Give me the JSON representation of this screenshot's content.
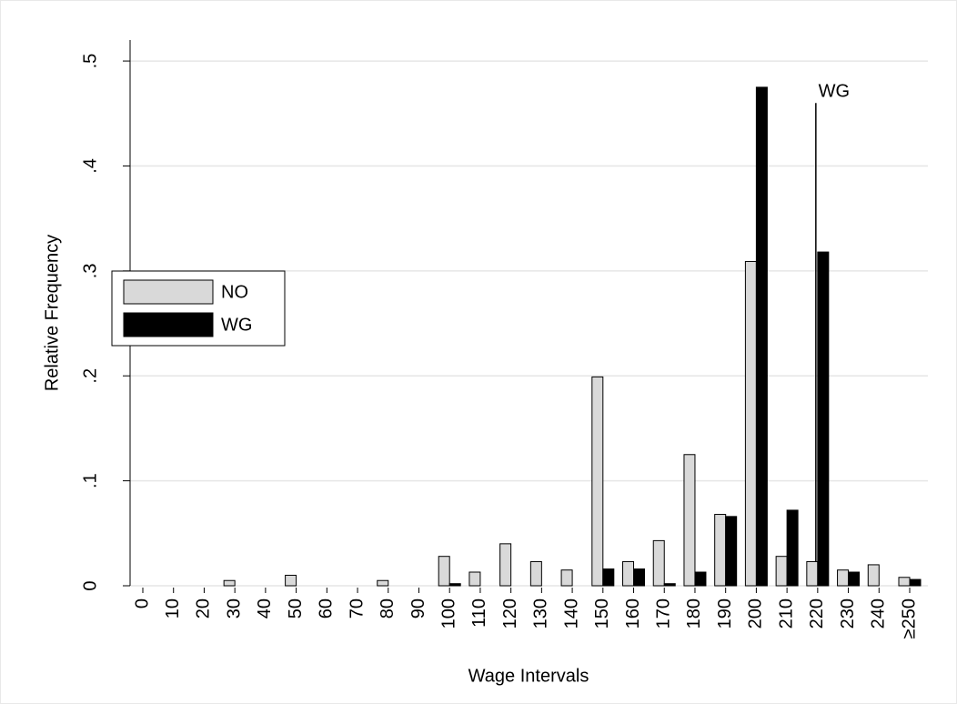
{
  "chart_data": {
    "type": "bar",
    "x_label": "Wage Intervals",
    "y_label": "Relative Frequency",
    "categories": [
      "0",
      "10",
      "20",
      "30",
      "40",
      "50",
      "60",
      "70",
      "80",
      "90",
      "100",
      "110",
      "120",
      "130",
      "140",
      "150",
      "160",
      "170",
      "180",
      "190",
      "200",
      "210",
      "220",
      "230",
      "240",
      "≥250"
    ],
    "series": [
      {
        "name": "NO",
        "color": "#d9d9d9",
        "values": [
          0,
          0,
          0,
          0.005,
          0,
          0.01,
          0,
          0,
          0.005,
          0,
          0.028,
          0.013,
          0.04,
          0.023,
          0.015,
          0.199,
          0.023,
          0.043,
          0.125,
          0.068,
          0.309,
          0.028,
          0.023,
          0.015,
          0.02,
          0.008
        ]
      },
      {
        "name": "WG",
        "color": "#000000",
        "values": [
          0,
          0,
          0,
          0,
          0,
          0,
          0,
          0,
          0,
          0,
          0.002,
          0,
          0,
          0,
          0,
          0.016,
          0.016,
          0.002,
          0.013,
          0.066,
          0.475,
          0.072,
          0.318,
          0.013,
          0,
          0.006
        ]
      }
    ],
    "ylim": [
      0,
      0.52
    ],
    "yticks": [
      0,
      {
        "value": 0.1,
        "label": ".1"
      },
      {
        "value": 0.2,
        "label": ".2"
      },
      {
        "value": 0.3,
        "label": ".3"
      },
      {
        "value": 0.4,
        "label": ".4"
      },
      {
        "value": 0.5,
        "label": ".5"
      }
    ],
    "grid": true,
    "legend": "left",
    "annotations": [
      {
        "text": "WG",
        "x": "220",
        "y": 0.46
      }
    ]
  }
}
